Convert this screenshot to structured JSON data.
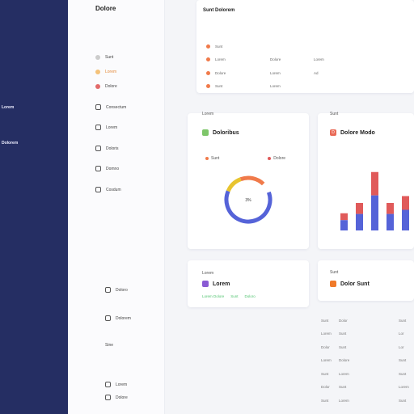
{
  "nav": {
    "items": [
      "",
      "",
      "",
      "",
      "Lorem",
      "Dolorem"
    ]
  },
  "side": {
    "title": "Dolore",
    "items": [
      "Sunt",
      "Lorem",
      "Dolore",
      "Consectum",
      "Lorem",
      "Doloris",
      "Domno",
      "Cosdum"
    ],
    "bottom_items": [
      "Doloro",
      "Dolorem",
      "Sine",
      "Lorem",
      "Dolore"
    ]
  },
  "top_card": {
    "header": "Sunt Dolorem",
    "rows": [
      [
        "Sunt",
        "",
        ""
      ],
      [
        "Lorem",
        "Dolore",
        "Lorem"
      ],
      [
        "Dolore",
        "Lorem",
        "Ad"
      ],
      [
        "Sunt",
        "Lorem",
        ""
      ]
    ]
  },
  "donut_card": {
    "eyebrow": "Lorem",
    "title": "Doloribus",
    "legend": [
      "Sunt",
      "Dolore"
    ],
    "center": "3%",
    "colors": {
      "blue": "#5563d8",
      "orange": "#f07a4a",
      "yellow": "#e8c42f",
      "purple": "#8a5bd4"
    }
  },
  "bar_card": {
    "eyebrow": "Sunt",
    "title": "Dolore Modo",
    "badge": "D"
  },
  "chart_data": {
    "type": "bar",
    "categories": [
      "",
      "",
      "",
      "",
      ""
    ],
    "series": [
      {
        "values": [
          5,
          8,
          17,
          8,
          10
        ]
      },
      {
        "values": [
          5,
          8,
          17,
          8,
          10
        ]
      }
    ],
    "colors": [
      "#5563d8",
      "#e05a5a"
    ]
  },
  "lower_left": {
    "eyebrow": "Lorem",
    "title": "Lorem",
    "tags": [
      "Lorem Dolore",
      "Sunt",
      "Doloro"
    ]
  },
  "lower_right": {
    "eyebrow": "Sunt",
    "title": "Dolor Sunt"
  },
  "table": {
    "rows": [
      [
        "Sunt",
        "Dolor",
        "Sunt"
      ],
      [
        "Lorem",
        "Sunt",
        "Lor"
      ],
      [
        "Dolor",
        "Sunt",
        "Lor"
      ],
      [
        "Lorem",
        "Dolore",
        "Sunt"
      ],
      [
        "Sunt",
        "Lorem",
        "Sunt"
      ],
      [
        "Dolor",
        "Sunt",
        "Lorem"
      ],
      [
        "Sunt",
        "Lorem",
        "Sunt"
      ]
    ]
  }
}
